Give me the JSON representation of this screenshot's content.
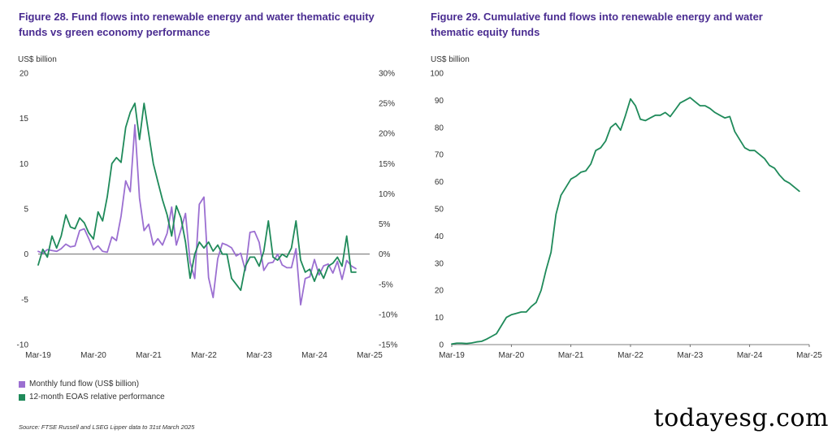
{
  "colors": {
    "purple": "#9b6fd1",
    "green": "#1f8a5a",
    "title": "#4a2c91",
    "axis": "#333333"
  },
  "chart_data": [
    {
      "id": "fig28",
      "type": "line",
      "title": "Figure 28. Fund flows into renewable energy and water thematic equity funds vs green economy performance",
      "ylabel": "US$ billion",
      "ylim": [
        -10,
        20
      ],
      "y_ticks": [
        -10,
        -5,
        0,
        5,
        10,
        15,
        20
      ],
      "y_tick_labels": [
        "-10",
        "-5",
        "0",
        "5",
        "10",
        "15",
        "20"
      ],
      "y2_ticks": [
        -15,
        -10,
        -5,
        0,
        5,
        10,
        15,
        20,
        25,
        30
      ],
      "y2_tick_labels": [
        "-15%",
        "-10%",
        "-5%",
        "0%",
        "5%",
        "10%",
        "15%",
        "20%",
        "25%",
        "30%"
      ],
      "y2lim": [
        -15,
        30
      ],
      "x_labels": [
        "Mar-19",
        "Mar-20",
        "Mar-21",
        "Mar-22",
        "Mar-23",
        "Mar-24",
        "Mar-25"
      ],
      "x_range": [
        0,
        72
      ],
      "series": [
        {
          "name": "Monthly fund flow (US$ billion)",
          "axis": "left",
          "color_key": "purple",
          "values": [
            [
              0,
              0.3
            ],
            [
              1,
              0.1
            ],
            [
              2,
              0.5
            ],
            [
              3,
              0.4
            ],
            [
              4,
              0.3
            ],
            [
              5,
              0.6
            ],
            [
              6,
              1.1
            ],
            [
              7,
              0.8
            ],
            [
              8,
              0.9
            ],
            [
              9,
              2.6
            ],
            [
              10,
              2.8
            ],
            [
              11,
              1.7
            ],
            [
              12,
              0.5
            ],
            [
              13,
              0.9
            ],
            [
              14,
              0.3
            ],
            [
              15,
              0.2
            ],
            [
              16,
              1.9
            ],
            [
              17,
              1.5
            ],
            [
              18,
              4.2
            ],
            [
              19,
              8.1
            ],
            [
              20,
              6.9
            ],
            [
              21,
              14.3
            ],
            [
              22,
              6.2
            ],
            [
              23,
              2.6
            ],
            [
              24,
              3.3
            ],
            [
              25,
              1.0
            ],
            [
              26,
              1.7
            ],
            [
              27,
              1.0
            ],
            [
              28,
              2.3
            ],
            [
              29,
              5.2
            ],
            [
              30,
              1.0
            ],
            [
              31,
              2.7
            ],
            [
              32,
              4.5
            ],
            [
              33,
              -0.9
            ],
            [
              34,
              -2.7
            ],
            [
              35,
              5.5
            ],
            [
              36,
              6.3
            ],
            [
              37,
              -2.6
            ],
            [
              38,
              -4.8
            ],
            [
              39,
              -0.5
            ],
            [
              40,
              1.2
            ],
            [
              41,
              1.0
            ],
            [
              42,
              0.7
            ],
            [
              43,
              -0.2
            ],
            [
              44,
              0.1
            ],
            [
              45,
              -1.8
            ],
            [
              46,
              2.4
            ],
            [
              47,
              2.5
            ],
            [
              48,
              1.3
            ],
            [
              49,
              -1.8
            ],
            [
              50,
              -1.0
            ],
            [
              51,
              -0.9
            ],
            [
              52,
              0.0
            ],
            [
              53,
              -1.2
            ],
            [
              54,
              -1.5
            ],
            [
              55,
              -1.5
            ],
            [
              56,
              0.6
            ],
            [
              57,
              -5.6
            ],
            [
              58,
              -2.7
            ],
            [
              59,
              -2.5
            ],
            [
              60,
              -0.6
            ],
            [
              61,
              -2.3
            ],
            [
              62,
              -1.3
            ],
            [
              63,
              -1.1
            ],
            [
              64,
              -2.1
            ],
            [
              65,
              -0.8
            ],
            [
              66,
              -2.8
            ],
            [
              67,
              -0.7
            ],
            [
              68,
              -1.3
            ],
            [
              69,
              -1.6
            ]
          ]
        },
        {
          "name": "12-month EOAS relative performance",
          "axis": "right",
          "color_key": "green",
          "values": [
            [
              0,
              -1.8
            ],
            [
              1,
              0.8
            ],
            [
              2,
              -0.5
            ],
            [
              3,
              3.0
            ],
            [
              4,
              1.0
            ],
            [
              5,
              3.0
            ],
            [
              6,
              6.5
            ],
            [
              7,
              4.5
            ],
            [
              8,
              4.2
            ],
            [
              9,
              6.0
            ],
            [
              10,
              5.2
            ],
            [
              11,
              3.5
            ],
            [
              12,
              2.5
            ],
            [
              13,
              7.0
            ],
            [
              14,
              5.5
            ],
            [
              15,
              9.5
            ],
            [
              16,
              15.0
            ],
            [
              17,
              16.0
            ],
            [
              18,
              15.2
            ],
            [
              19,
              21.0
            ],
            [
              20,
              23.5
            ],
            [
              21,
              25.0
            ],
            [
              22,
              19.0
            ],
            [
              23,
              25.0
            ],
            [
              24,
              20.0
            ],
            [
              25,
              15.0
            ],
            [
              26,
              12.0
            ],
            [
              27,
              9.0
            ],
            [
              28,
              6.5
            ],
            [
              29,
              3.0
            ],
            [
              30,
              8.0
            ],
            [
              31,
              6.0
            ],
            [
              32,
              2.0
            ],
            [
              33,
              -4.0
            ],
            [
              34,
              0.0
            ],
            [
              35,
              2.0
            ],
            [
              36,
              1.0
            ],
            [
              37,
              2.0
            ],
            [
              38,
              0.5
            ],
            [
              39,
              1.5
            ],
            [
              40,
              0.0
            ],
            [
              41,
              0.0
            ],
            [
              42,
              -4.0
            ],
            [
              43,
              -5.0
            ],
            [
              44,
              -6.0
            ],
            [
              45,
              -2.0
            ],
            [
              46,
              -0.5
            ],
            [
              47,
              -0.5
            ],
            [
              48,
              -2.0
            ],
            [
              49,
              0.5
            ],
            [
              50,
              5.5
            ],
            [
              51,
              -0.5
            ],
            [
              52,
              -1.0
            ],
            [
              53,
              0.0
            ],
            [
              54,
              -0.5
            ],
            [
              55,
              1.0
            ],
            [
              56,
              5.5
            ],
            [
              57,
              -1.0
            ],
            [
              58,
              -3.0
            ],
            [
              59,
              -2.5
            ],
            [
              60,
              -4.5
            ],
            [
              61,
              -2.5
            ],
            [
              62,
              -4.0
            ],
            [
              63,
              -2.0
            ],
            [
              64,
              -1.5
            ],
            [
              65,
              -0.5
            ],
            [
              66,
              -2.0
            ],
            [
              67,
              3.0
            ],
            [
              68,
              -3.0
            ],
            [
              69,
              -3.0
            ]
          ]
        }
      ],
      "legend": [
        "Monthly fund flow (US$ billion)",
        "12-month EOAS relative performance"
      ]
    },
    {
      "id": "fig29",
      "type": "line",
      "title": "Figure 29. Cumulative fund flows into renewable energy and water thematic equity funds",
      "ylabel": "US$ billion",
      "ylim": [
        0,
        100
      ],
      "y_ticks": [
        0,
        10,
        20,
        30,
        40,
        50,
        60,
        70,
        80,
        90,
        100
      ],
      "y_tick_labels": [
        "0",
        "10",
        "20",
        "30",
        "40",
        "50",
        "60",
        "70",
        "80",
        "90",
        "100"
      ],
      "x_labels": [
        "Mar-19",
        "Mar-20",
        "Mar-21",
        "Mar-22",
        "Mar-23",
        "Mar-24",
        "Mar-25"
      ],
      "x_range": [
        0,
        72
      ],
      "series": [
        {
          "name": "Cumulative fund flows",
          "color_key": "green",
          "values": [
            [
              0,
              0.2
            ],
            [
              1,
              0.5
            ],
            [
              2,
              0.5
            ],
            [
              3,
              0.4
            ],
            [
              4,
              0.6
            ],
            [
              5,
              1.0
            ],
            [
              6,
              1.2
            ],
            [
              7,
              2.0
            ],
            [
              8,
              3.0
            ],
            [
              9,
              4.0
            ],
            [
              10,
              7.0
            ],
            [
              11,
              10.0
            ],
            [
              12,
              11.0
            ],
            [
              13,
              11.5
            ],
            [
              14,
              12.0
            ],
            [
              15,
              12.0
            ],
            [
              16,
              14.0
            ],
            [
              17,
              15.5
            ],
            [
              18,
              20.0
            ],
            [
              19,
              27.5
            ],
            [
              20,
              34.0
            ],
            [
              21,
              48.0
            ],
            [
              22,
              55.0
            ],
            [
              23,
              58.0
            ],
            [
              24,
              61.0
            ],
            [
              25,
              62.0
            ],
            [
              26,
              63.5
            ],
            [
              27,
              64.0
            ],
            [
              28,
              66.5
            ],
            [
              29,
              71.5
            ],
            [
              30,
              72.5
            ],
            [
              31,
              75.0
            ],
            [
              32,
              80.0
            ],
            [
              33,
              81.5
            ],
            [
              34,
              79.0
            ],
            [
              35,
              84.5
            ],
            [
              36,
              90.5
            ],
            [
              37,
              88.0
            ],
            [
              38,
              83.0
            ],
            [
              39,
              82.5
            ],
            [
              40,
              83.5
            ],
            [
              41,
              84.5
            ],
            [
              42,
              84.5
            ],
            [
              43,
              85.5
            ],
            [
              44,
              84.0
            ],
            [
              45,
              86.5
            ],
            [
              46,
              89.0
            ],
            [
              47,
              90.0
            ],
            [
              48,
              91.0
            ],
            [
              49,
              89.5
            ],
            [
              50,
              88.0
            ],
            [
              51,
              88.0
            ],
            [
              52,
              87.0
            ],
            [
              53,
              85.5
            ],
            [
              54,
              84.5
            ],
            [
              55,
              83.5
            ],
            [
              56,
              84.0
            ],
            [
              57,
              78.5
            ],
            [
              58,
              75.5
            ],
            [
              59,
              72.5
            ],
            [
              60,
              71.5
            ],
            [
              61,
              71.5
            ],
            [
              62,
              70.0
            ],
            [
              63,
              68.5
            ],
            [
              64,
              66.0
            ],
            [
              65,
              65.0
            ],
            [
              66,
              62.5
            ],
            [
              67,
              60.5
            ],
            [
              68,
              59.5
            ],
            [
              69,
              58.0
            ],
            [
              70,
              56.5
            ]
          ]
        }
      ]
    }
  ],
  "legend": {
    "item1": "Monthly fund flow (US$ billion)",
    "item2": "12-month EOAS relative performance"
  },
  "texts": {
    "title28": "Figure 28. Fund flows into renewable energy and water thematic equity funds vs green economy performance",
    "title29": "Figure 29. Cumulative fund flows into renewable energy and water thematic equity funds",
    "ylabel28": "US$ billion",
    "ylabel29": "US$ billion",
    "source": "Source: FTSE Russell and LSEG Lipper data to 31st March 2025",
    "watermark": "todayesg.com"
  }
}
